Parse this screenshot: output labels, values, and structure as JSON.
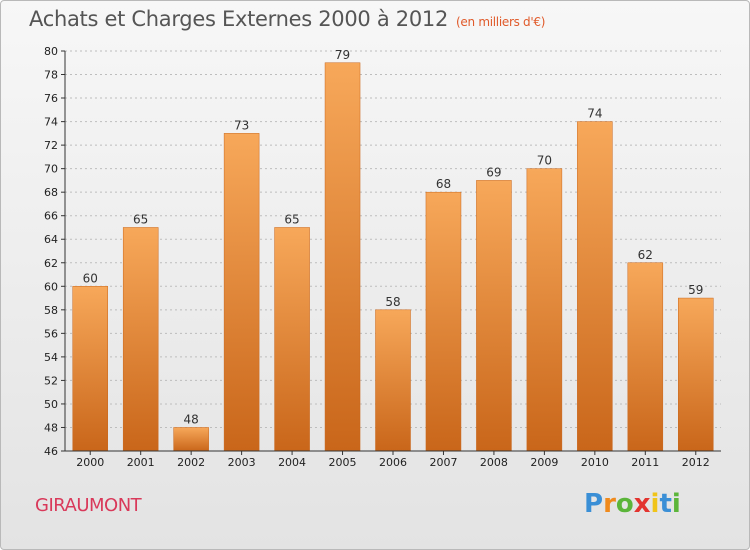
{
  "title": "Achats et Charges Externes 2000 à 2012",
  "unit": "(en milliers d'€)",
  "commune": "GIRAUMONT",
  "logo": {
    "text": "Proxiti",
    "letters": [
      {
        "ch": "P",
        "color": "#3a8fd6"
      },
      {
        "ch": "r",
        "color": "#f08a1c"
      },
      {
        "ch": "o",
        "color": "#5bb53a"
      },
      {
        "ch": "x",
        "color": "#e3342f"
      },
      {
        "ch": "i",
        "color": "#f0c419"
      },
      {
        "ch": "t",
        "color": "#3a8fd6"
      },
      {
        "ch": "i",
        "color": "#5bb53a"
      }
    ]
  },
  "colors": {
    "bar": "#f0882f",
    "bar_light": "#f7a85a",
    "bar_dark": "#c9661a",
    "grid": "#bdbdbd",
    "axis": "#333333"
  },
  "chart_data": {
    "type": "bar",
    "title": "Achats et Charges Externes 2000 à 2012",
    "subtitle": "(en milliers d'€)",
    "categories": [
      "2000",
      "2001",
      "2002",
      "2003",
      "2004",
      "2005",
      "2006",
      "2007",
      "2008",
      "2009",
      "2010",
      "2011",
      "2012"
    ],
    "values": [
      60,
      65,
      48,
      73,
      65,
      79,
      58,
      68,
      69,
      70,
      74,
      62,
      59
    ],
    "ylim": [
      46,
      80
    ],
    "yticks": [
      46,
      48,
      50,
      52,
      54,
      56,
      58,
      60,
      62,
      64,
      66,
      68,
      70,
      72,
      74,
      76,
      78,
      80
    ],
    "grid": true,
    "legend": "none"
  }
}
